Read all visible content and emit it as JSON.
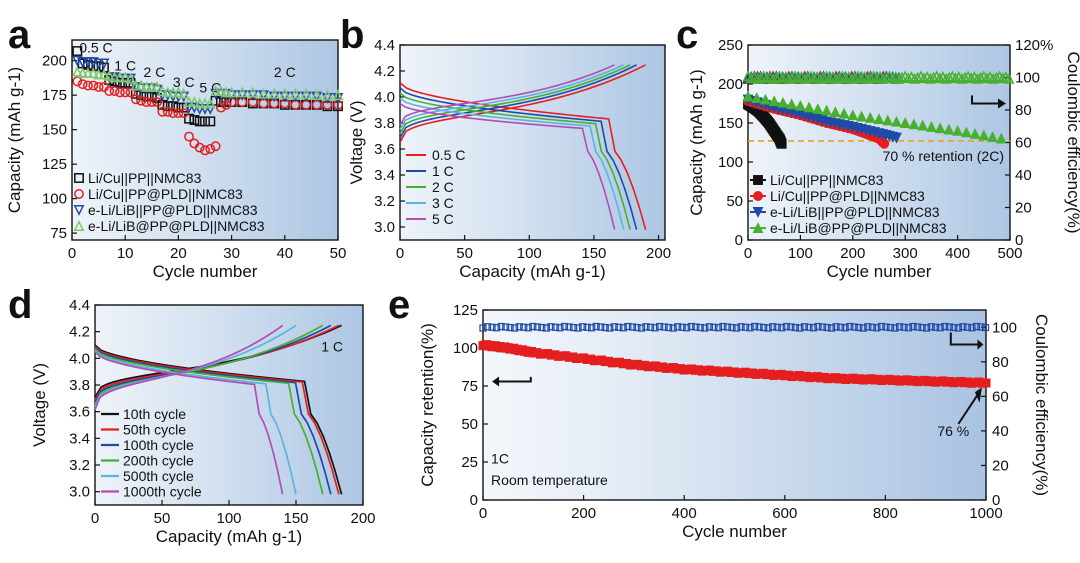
{
  "panel_labels": {
    "a": "a",
    "b": "b",
    "c": "c",
    "d": "d",
    "e": "e"
  },
  "colors": {
    "black": "#111111",
    "red": "#e41f1f",
    "blue": "#1f4aa8",
    "green": "#47b02e",
    "lightgreen": "#7fc76a",
    "cyan": "#5ab4e0",
    "purple": "#b44cb4",
    "orange": "#f0a020",
    "bg_dark": "#b8cfe6",
    "bg_light": "#e9f0f8"
  },
  "chart_data": [
    {
      "id": "a",
      "type": "scatter",
      "title": "",
      "xlabel": "Cycle number",
      "ylabel": "Capacity (mAh g-1)",
      "xlim": [
        0,
        50
      ],
      "ylim": [
        70,
        215
      ],
      "xticks": [
        "0",
        "10",
        "20",
        "30",
        "40",
        "50"
      ],
      "yticks": [
        "75",
        "100",
        "125",
        "150",
        "175",
        "200"
      ],
      "annotations": [
        {
          "text": "0.5 C",
          "x": 4.5,
          "y": 206
        },
        {
          "text": "1 C",
          "x": 10,
          "y": 193
        },
        {
          "text": "2 C",
          "x": 15.5,
          "y": 188
        },
        {
          "text": "3 C",
          "x": 21,
          "y": 181
        },
        {
          "text": "5 C",
          "x": 26,
          "y": 177
        },
        {
          "text": "2 C",
          "x": 40,
          "y": 188
        }
      ],
      "series": [
        {
          "name": "Li/Cu||PP||NMC83",
          "color": "black",
          "marker": "square-open",
          "x": [
            1,
            2,
            3,
            4,
            5,
            6,
            7,
            8,
            9,
            10,
            11,
            12,
            13,
            14,
            15,
            16,
            17,
            18,
            19,
            20,
            21,
            22,
            23,
            24,
            25,
            26,
            27,
            28,
            29,
            30,
            32,
            34,
            36,
            38,
            40,
            42,
            44,
            46,
            48,
            50
          ],
          "y": [
            207,
            198,
            197,
            196,
            196,
            195,
            186,
            185,
            184,
            184,
            184,
            176,
            175,
            174,
            174,
            173,
            168,
            167,
            167,
            166,
            166,
            158,
            157,
            156,
            156,
            156,
            171,
            170,
            170,
            170,
            170,
            169,
            169,
            169,
            168,
            168,
            168,
            168,
            167,
            167
          ]
        },
        {
          "name": "Li/Cu||PP@PLD||NMC83",
          "color": "red",
          "marker": "circle-open",
          "x": [
            1,
            2,
            3,
            4,
            5,
            6,
            7,
            8,
            9,
            10,
            11,
            12,
            13,
            14,
            15,
            16,
            17,
            18,
            19,
            20,
            21,
            22,
            23,
            24,
            25,
            26,
            27,
            28,
            29,
            30,
            32,
            34,
            36,
            38,
            40,
            42,
            44,
            46,
            48,
            50
          ],
          "y": [
            185,
            183,
            182,
            182,
            181,
            181,
            178,
            178,
            177,
            177,
            177,
            172,
            171,
            170,
            170,
            170,
            163,
            163,
            162,
            162,
            162,
            145,
            140,
            137,
            135,
            136,
            138,
            166,
            168,
            170,
            170,
            170,
            169,
            169,
            169,
            168,
            168,
            168,
            168,
            168
          ]
        },
        {
          "name": "e-Li/LiB||PP@PLD||NMC83",
          "color": "blue",
          "marker": "triangle-down-open",
          "x": [
            1,
            2,
            3,
            4,
            5,
            6,
            7,
            8,
            9,
            10,
            11,
            12,
            13,
            14,
            15,
            16,
            17,
            18,
            19,
            20,
            21,
            22,
            23,
            24,
            25,
            26,
            27,
            28,
            29,
            30,
            32,
            34,
            36,
            38,
            40,
            42,
            44,
            46,
            48,
            50
          ],
          "y": [
            200,
            199,
            199,
            199,
            198,
            198,
            188,
            188,
            187,
            187,
            187,
            181,
            180,
            180,
            180,
            179,
            175,
            175,
            174,
            174,
            174,
            166,
            166,
            165,
            165,
            165,
            176,
            176,
            176,
            175,
            175,
            175,
            175,
            174,
            174,
            174,
            174,
            174,
            173,
            173
          ]
        },
        {
          "name": "e-Li/LiB@PP@PLD||NMC83",
          "color": "lightgreen",
          "marker": "triangle-up-open",
          "x": [
            1,
            2,
            3,
            4,
            5,
            6,
            7,
            8,
            9,
            10,
            11,
            12,
            13,
            14,
            15,
            16,
            17,
            18,
            19,
            20,
            21,
            22,
            23,
            24,
            25,
            26,
            27,
            28,
            29,
            30,
            32,
            34,
            36,
            38,
            40,
            42,
            44,
            46,
            48,
            50
          ],
          "y": [
            192,
            191,
            191,
            191,
            190,
            190,
            189,
            188,
            188,
            188,
            187,
            182,
            182,
            181,
            181,
            181,
            178,
            177,
            177,
            177,
            176,
            170,
            170,
            169,
            169,
            169,
            178,
            178,
            177,
            177,
            177,
            177,
            176,
            176,
            176,
            176,
            176,
            175,
            175,
            175
          ]
        }
      ],
      "legend_position": "bottom-left"
    },
    {
      "id": "b",
      "type": "line",
      "title": "",
      "xlabel": "Capacity (mAh g-1)",
      "ylabel": "Voltage (V)",
      "xlim": [
        0,
        205
      ],
      "ylim": [
        2.9,
        4.4
      ],
      "xticks": [
        "0",
        "50",
        "100",
        "150",
        "200"
      ],
      "yticks": [
        "3.0",
        "3.2",
        "3.4",
        "3.6",
        "3.8",
        "4.0",
        "4.2",
        "4.4"
      ],
      "series": [
        {
          "name": "0.5 C",
          "color": "red",
          "charge_end": 190,
          "discharge_end": 190
        },
        {
          "name": "1 C",
          "color": "blue",
          "charge_end": 183,
          "discharge_end": 183
        },
        {
          "name": "2 C",
          "color": "green",
          "charge_end": 178,
          "discharge_end": 178
        },
        {
          "name": "3 C",
          "color": "cyan",
          "charge_end": 173,
          "discharge_end": 173
        },
        {
          "name": "5 C",
          "color": "purple",
          "charge_end": 166,
          "discharge_end": 166
        }
      ],
      "legend_position": "bottom-left"
    },
    {
      "id": "c",
      "type": "scatter",
      "title": "",
      "xlabel": "Cycle number",
      "ylabel": "Capacity (mAh g-1)",
      "y2label": "Coulombic efficiency(%)",
      "xlim": [
        0,
        500
      ],
      "ylim": [
        0,
        250
      ],
      "y2lim": [
        0,
        120
      ],
      "xticks": [
        "0",
        "100",
        "200",
        "300",
        "400",
        "500"
      ],
      "yticks": [
        "0",
        "50",
        "100",
        "150",
        "200",
        "250"
      ],
      "y2ticks": [
        "0",
        "20",
        "40",
        "60",
        "80",
        "100",
        "120%"
      ],
      "retention_line": {
        "y": 127,
        "label": "70 % retention (2C)",
        "color": "orange"
      },
      "series": [
        {
          "name": "Li/Cu||PP||NMC83",
          "color": "black",
          "marker": "square",
          "x": [
            0,
            10,
            20,
            30,
            40,
            50,
            60,
            65
          ],
          "y": [
            174,
            170,
            165,
            158,
            150,
            140,
            130,
            122
          ]
        },
        {
          "name": "Li/Cu||PP@PLD||NMC83",
          "color": "red",
          "marker": "circle",
          "x": [
            0,
            50,
            100,
            150,
            200,
            230,
            250,
            262
          ],
          "y": [
            178,
            168,
            160,
            150,
            142,
            135,
            130,
            122
          ]
        },
        {
          "name": "e-Li/LiB||PP@PLD||NMC83",
          "color": "blue",
          "marker": "triangle-down",
          "x": [
            0,
            50,
            100,
            150,
            200,
            250,
            290
          ],
          "y": [
            180,
            170,
            162,
            152,
            145,
            137,
            130
          ]
        },
        {
          "name": "e-Li/LiB@PP@PLD||NMC83",
          "color": "green",
          "marker": "triangle-up",
          "x": [
            0,
            100,
            200,
            300,
            400,
            500
          ],
          "y": [
            184,
            172,
            160,
            150,
            140,
            128
          ]
        }
      ],
      "ce_value": 100,
      "legend_position": "bottom-left"
    },
    {
      "id": "d",
      "type": "line",
      "title": "",
      "xlabel": "Capacity (mAh g-1)",
      "ylabel": "Voltage (V)",
      "xlim": [
        0,
        200
      ],
      "ylim": [
        2.9,
        4.4
      ],
      "xticks": [
        "0",
        "50",
        "100",
        "150",
        "200"
      ],
      "yticks": [
        "3.0",
        "3.2",
        "3.4",
        "3.6",
        "3.8",
        "4.0",
        "4.2",
        "4.4"
      ],
      "annotation": "1 C",
      "series": [
        {
          "name": "10th cycle",
          "color": "black",
          "charge_end": 184,
          "discharge_end": 184
        },
        {
          "name": "50th cycle",
          "color": "red",
          "charge_end": 182,
          "discharge_end": 182
        },
        {
          "name": "100th cycle",
          "color": "blue",
          "charge_end": 176,
          "discharge_end": 176
        },
        {
          "name": "200th cycle",
          "color": "green",
          "charge_end": 170,
          "discharge_end": 170
        },
        {
          "name": "500th cycle",
          "color": "cyan",
          "charge_end": 150,
          "discharge_end": 150
        },
        {
          "name": "1000th cycle",
          "color": "purple",
          "charge_end": 140,
          "discharge_end": 140
        }
      ],
      "legend_position": "bottom-left"
    },
    {
      "id": "e",
      "type": "scatter",
      "title": "",
      "xlabel": "Cycle number",
      "ylabel": "Capacity retention(%)",
      "y2label": "Coulombic efficiency(%)",
      "xlim": [
        0,
        1000
      ],
      "ylim": [
        0,
        125
      ],
      "y2lim": [
        0,
        110
      ],
      "xticks": [
        "0",
        "200",
        "400",
        "600",
        "800",
        "1000"
      ],
      "yticks": [
        "0",
        "25",
        "50",
        "75",
        "100",
        "125"
      ],
      "y2ticks": [
        "0",
        "20",
        "40",
        "60",
        "80",
        "100"
      ],
      "retention": {
        "x": [
          0,
          50,
          100,
          200,
          300,
          400,
          500,
          600,
          700,
          800,
          900,
          1000
        ],
        "y": [
          102,
          100,
          97,
          93,
          89,
          86,
          84,
          82,
          80,
          79,
          78,
          77
        ]
      },
      "ce_value": 100,
      "annotations": [
        "1C",
        "Room temperature",
        "76 %"
      ]
    }
  ]
}
